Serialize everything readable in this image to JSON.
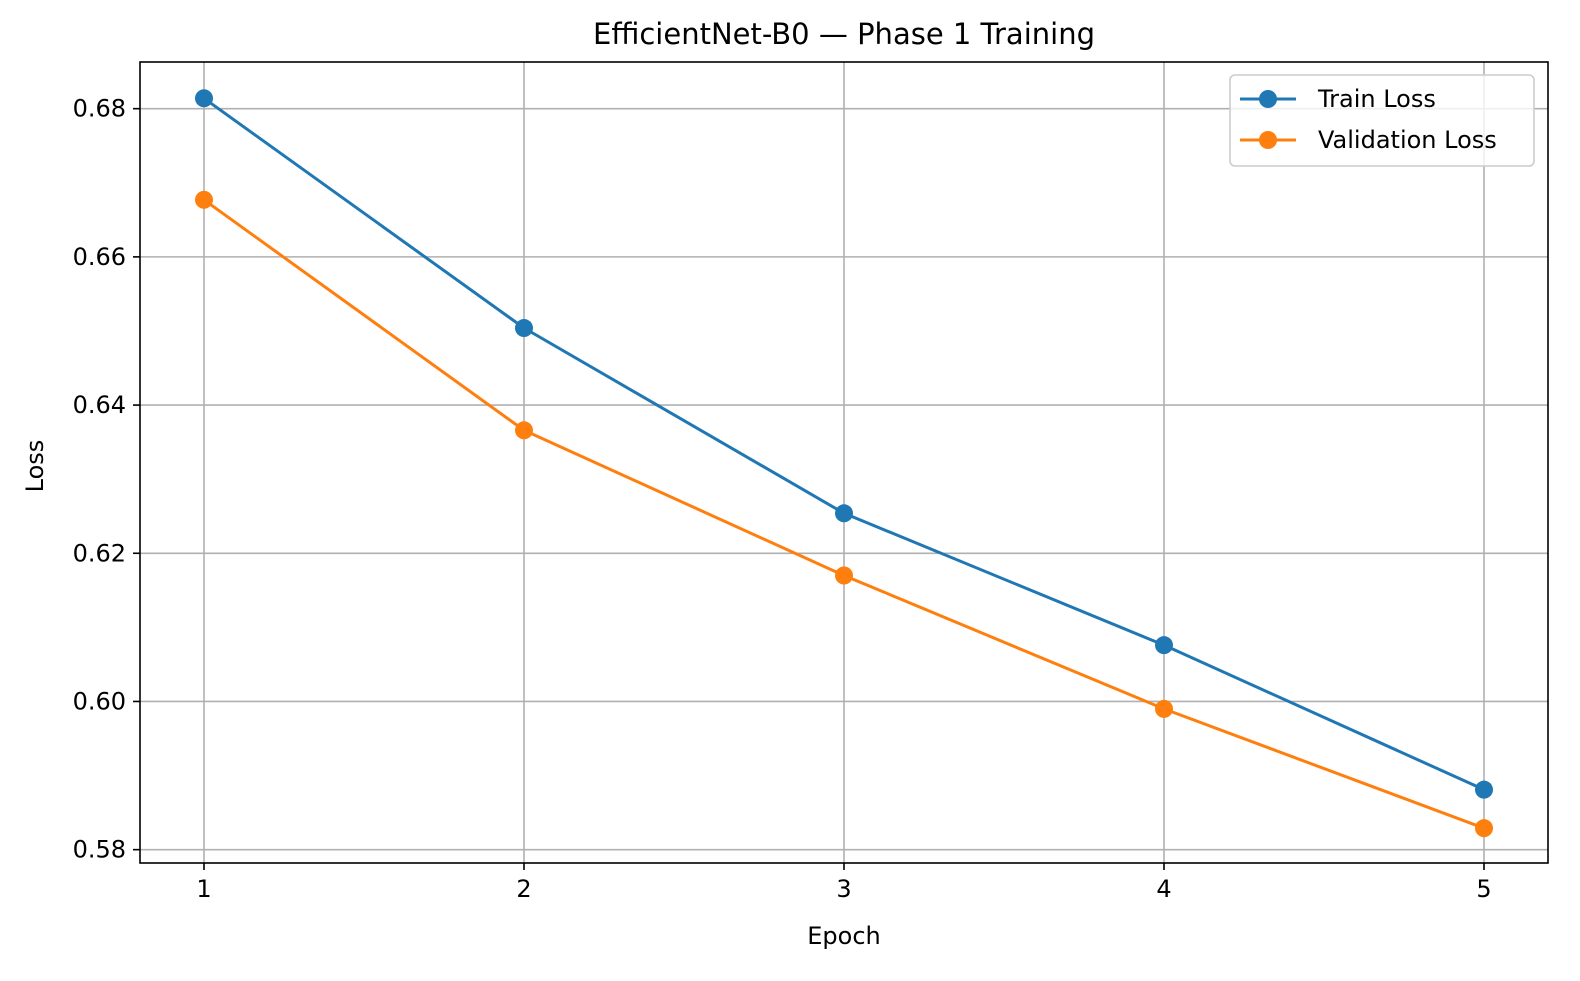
{
  "chart_data": {
    "type": "line",
    "title": "EfficientNet-B0 — Phase 1 Training",
    "xlabel": "Epoch",
    "ylabel": "Loss",
    "x": [
      1,
      2,
      3,
      4,
      5
    ],
    "xticks": [
      1,
      2,
      3,
      4,
      5
    ],
    "yticks": [
      0.58,
      0.6,
      0.62,
      0.64,
      0.66,
      0.68
    ],
    "ytick_labels": [
      "0.58",
      "0.60",
      "0.62",
      "0.64",
      "0.66",
      "0.68"
    ],
    "xlim": [
      0.8,
      5.2
    ],
    "ylim": [
      0.5782,
      0.6863
    ],
    "grid": true,
    "legend_position": "top-right",
    "series": [
      {
        "name": "Train Loss",
        "color": "#1f77b4",
        "marker": "circle",
        "values": [
          0.6814,
          0.6504,
          0.6254,
          0.6076,
          0.5881
        ]
      },
      {
        "name": "Validation Loss",
        "color": "#ff7f0e",
        "marker": "circle",
        "values": [
          0.6677,
          0.6366,
          0.617,
          0.599,
          0.5829
        ]
      }
    ]
  }
}
